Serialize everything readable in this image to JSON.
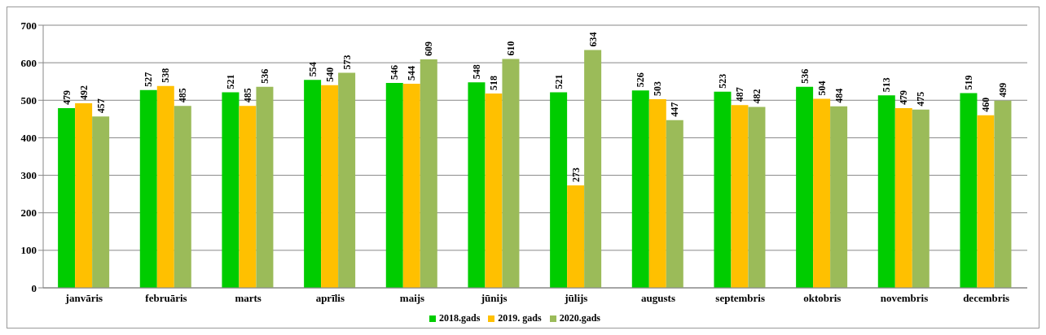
{
  "chart_data": {
    "type": "bar",
    "categories": [
      "janvāris",
      "februāris",
      "marts",
      "aprīlis",
      "maijs",
      "jūnijs",
      "jūlijs",
      "augusts",
      "septembris",
      "oktobris",
      "novembris",
      "decembris"
    ],
    "series": [
      {
        "name": "2018.gads",
        "color": "#00cc00",
        "values": [
          479,
          527,
          521,
          554,
          546,
          548,
          521,
          526,
          523,
          536,
          513,
          519
        ]
      },
      {
        "name": "2019. gads",
        "color": "#ffc000",
        "values": [
          492,
          538,
          485,
          540,
          544,
          518,
          273,
          503,
          487,
          504,
          479,
          460
        ]
      },
      {
        "name": "2020.gads",
        "color": "#9bbb59",
        "values": [
          457,
          485,
          536,
          573,
          609,
          610,
          634,
          447,
          482,
          484,
          475,
          499
        ]
      }
    ],
    "ylim": [
      0,
      700
    ],
    "yticks": [
      0,
      100,
      200,
      300,
      400,
      500,
      600,
      700
    ],
    "grid": "y",
    "legend": "bottom",
    "data_labels": true
  }
}
